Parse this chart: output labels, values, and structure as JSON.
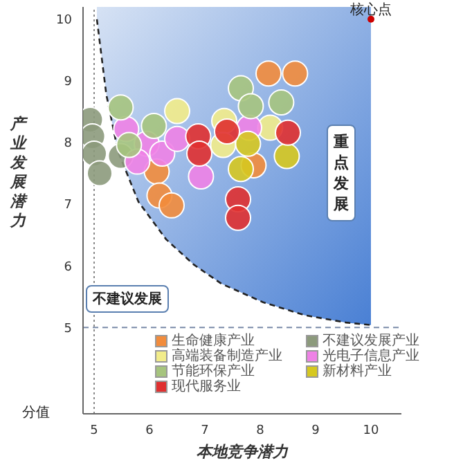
{
  "chart_data": {
    "type": "scatter",
    "xlabel": "本地竞争潜力",
    "ylabel": "产业发展潜力",
    "xlim": [
      4.8,
      10.55
    ],
    "ylim": [
      3.6,
      10.2
    ],
    "xticks": [
      5,
      6,
      7,
      8,
      9,
      10
    ],
    "yticks": [
      5,
      6,
      7,
      8,
      9,
      10
    ],
    "grid": false,
    "legend": "bottom right",
    "marker": "circle",
    "series": [
      {
        "type": "line",
        "color": "#222222",
        "marker": "none",
        "line_style": "dashed",
        "x": [
          5.05,
          5.22,
          5.43,
          5.8,
          6.3,
          6.8,
          7.3,
          8.05,
          8.8,
          9.55,
          10
        ],
        "values": [
          10,
          8.78,
          7.86,
          7.04,
          6.43,
          6.02,
          5.71,
          5.41,
          5.2,
          5.08,
          5.04
        ]
      },
      {
        "name": "生命健康产业",
        "color": "#f28c3c",
        "x": [
          8.15,
          8.63,
          7.88,
          6.13,
          6.18,
          6.4
        ],
        "values": [
          9.12,
          9.12,
          7.63,
          7.53,
          7.14,
          6.98
        ]
      },
      {
        "name": "不建议发展产业",
        "color": "#8c9a7c",
        "x": [
          4.93,
          4.97,
          5.0,
          5.1,
          5.48
        ],
        "values": [
          8.37,
          8.1,
          7.82,
          7.5,
          7.78
        ]
      },
      {
        "name": "高端装备制造产业",
        "color": "#f2ec8a",
        "x": [
          6.5,
          7.35,
          7.33,
          8.18
        ],
        "values": [
          8.51,
          8.35,
          7.96,
          8.24
        ]
      },
      {
        "name": "光电子信息产业",
        "color": "#ee82e6",
        "x": [
          5.58,
          5.95,
          5.78,
          6.23,
          6.5,
          6.93,
          7.8
        ],
        "values": [
          8.22,
          7.98,
          7.69,
          7.82,
          8.06,
          7.45,
          8.24
        ]
      },
      {
        "name": "节能环保产业",
        "color": "#a6c47e",
        "x": [
          5.48,
          6.08,
          5.63,
          7.65,
          7.83,
          8.38
        ],
        "values": [
          8.57,
          8.27,
          7.96,
          8.88,
          8.59,
          8.65
        ]
      },
      {
        "name": "新材料产业",
        "color": "#d6c820",
        "x": [
          7.78,
          7.65,
          8.48
        ],
        "values": [
          7.98,
          7.57,
          7.78
        ]
      },
      {
        "name": "现代服务业",
        "color": "#e03030",
        "x": [
          6.88,
          6.9,
          7.4,
          8.5,
          7.6,
          7.6
        ],
        "values": [
          8.1,
          7.82,
          8.18,
          8.16,
          7.08,
          6.78
        ]
      },
      {
        "color": "#cc0000",
        "marker": "dot",
        "x": [
          10
        ],
        "values": [
          10
        ]
      }
    ],
    "ref_lines": [
      {
        "axis": "x",
        "value": 5,
        "line_style": "dotted",
        "color": "#888888"
      },
      {
        "axis": "y",
        "value": 5,
        "line_style": "dashed",
        "color": "#7a8aa8"
      }
    ],
    "annotations": [
      "重点发展",
      "不建议发展",
      "分值",
      {
        "text": "核心点",
        "x": 10,
        "y": 10
      }
    ]
  }
}
